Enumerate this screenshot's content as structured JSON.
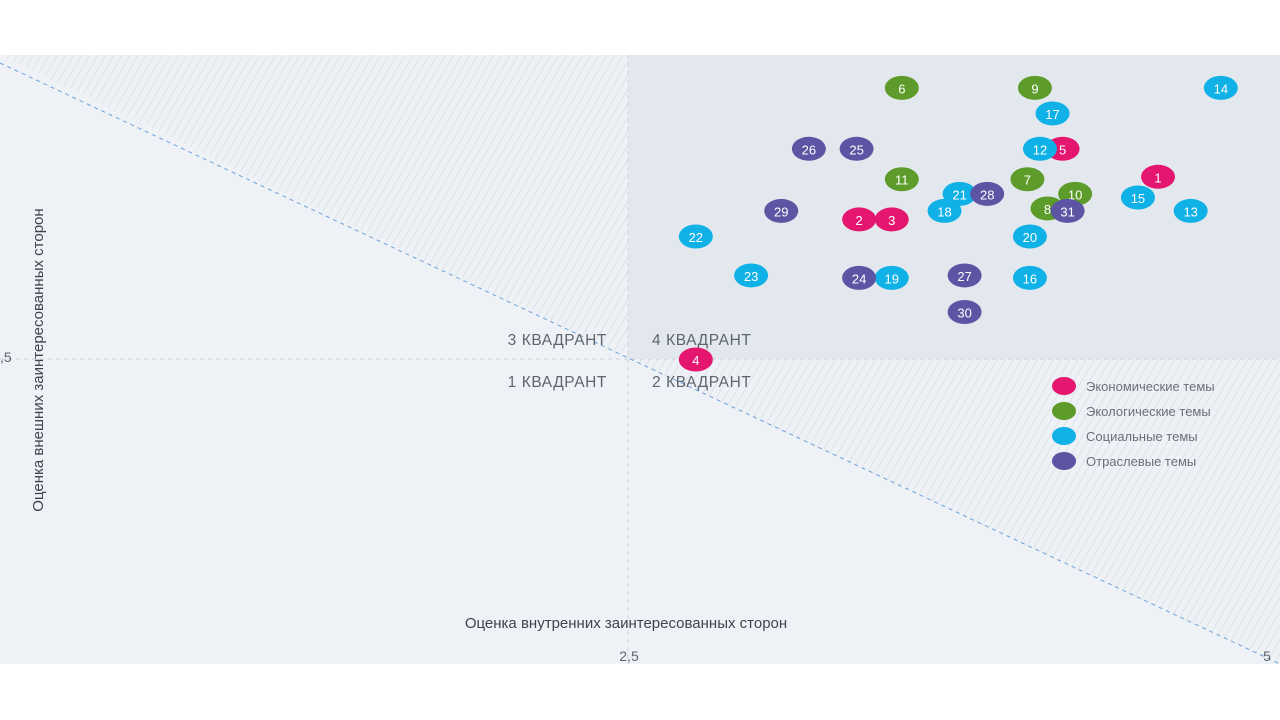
{
  "chart_data": {
    "type": "scatter",
    "title": "",
    "xlabel": "Оценка внутренних заинтересованных сторон",
    "ylabel": "Оценка внешних заинтересованных сторон",
    "xlim": [
      0,
      5
    ],
    "ylim": [
      0,
      5
    ],
    "x_ticks": [
      "2,5",
      "5"
    ],
    "y_ticks": [
      ",5"
    ],
    "quadrants": [
      "3 КВАДРАНТ",
      "4 КВАДРАНТ",
      "1 КВАДРАНТ",
      "2 КВАДРАНТ"
    ],
    "legend_position": "right",
    "series": [
      {
        "name": "Экономические темы",
        "color": "#e5166f",
        "points": [
          {
            "label": "1",
            "x": 4.61,
            "y": 4.0
          },
          {
            "label": "2",
            "x": 3.42,
            "y": 3.65
          },
          {
            "label": "3",
            "x": 3.55,
            "y": 3.65
          },
          {
            "label": "4",
            "x": 2.77,
            "y": 2.5
          },
          {
            "label": "5",
            "x": 4.23,
            "y": 4.23
          }
        ]
      },
      {
        "name": "Экологические темы",
        "color": "#5d9b2b",
        "points": [
          {
            "label": "6",
            "x": 3.59,
            "y": 4.73
          },
          {
            "label": "7",
            "x": 4.09,
            "y": 3.98
          },
          {
            "label": "8",
            "x": 4.17,
            "y": 3.74
          },
          {
            "label": "9",
            "x": 4.12,
            "y": 4.73
          },
          {
            "label": "10",
            "x": 4.28,
            "y": 3.86
          },
          {
            "label": "11",
            "x": 3.59,
            "y": 3.98
          }
        ]
      },
      {
        "name": "Социальные темы",
        "color": "#0fb1e6",
        "points": [
          {
            "label": "12",
            "x": 4.14,
            "y": 4.23
          },
          {
            "label": "13",
            "x": 4.74,
            "y": 3.72
          },
          {
            "label": "14",
            "x": 4.86,
            "y": 4.73
          },
          {
            "label": "15",
            "x": 4.53,
            "y": 3.83
          },
          {
            "label": "16",
            "x": 4.1,
            "y": 3.17
          },
          {
            "label": "17",
            "x": 4.19,
            "y": 4.52
          },
          {
            "label": "18",
            "x": 3.76,
            "y": 3.72
          },
          {
            "label": "19",
            "x": 3.55,
            "y": 3.17
          },
          {
            "label": "20",
            "x": 4.1,
            "y": 3.51
          },
          {
            "label": "21",
            "x": 3.82,
            "y": 3.86
          },
          {
            "label": "22",
            "x": 2.77,
            "y": 3.51
          },
          {
            "label": "23",
            "x": 2.99,
            "y": 3.19
          }
        ]
      },
      {
        "name": "Отраслевые темы",
        "color": "#5b55a3",
        "points": [
          {
            "label": "24",
            "x": 3.42,
            "y": 3.17
          },
          {
            "label": "25",
            "x": 3.41,
            "y": 4.23
          },
          {
            "label": "26",
            "x": 3.22,
            "y": 4.23
          },
          {
            "label": "27",
            "x": 3.84,
            "y": 3.19
          },
          {
            "label": "28",
            "x": 3.93,
            "y": 3.86
          },
          {
            "label": "29",
            "x": 3.11,
            "y": 3.72
          },
          {
            "label": "30",
            "x": 3.84,
            "y": 2.89
          },
          {
            "label": "31",
            "x": 4.25,
            "y": 3.72
          }
        ]
      }
    ]
  },
  "colors": {
    "background": "#eef1f5",
    "quadrant4": "#e3e8ee",
    "hatch": "#cfd6de",
    "diagonal": "#6fa0d8",
    "midline": "#cfd3d9"
  }
}
